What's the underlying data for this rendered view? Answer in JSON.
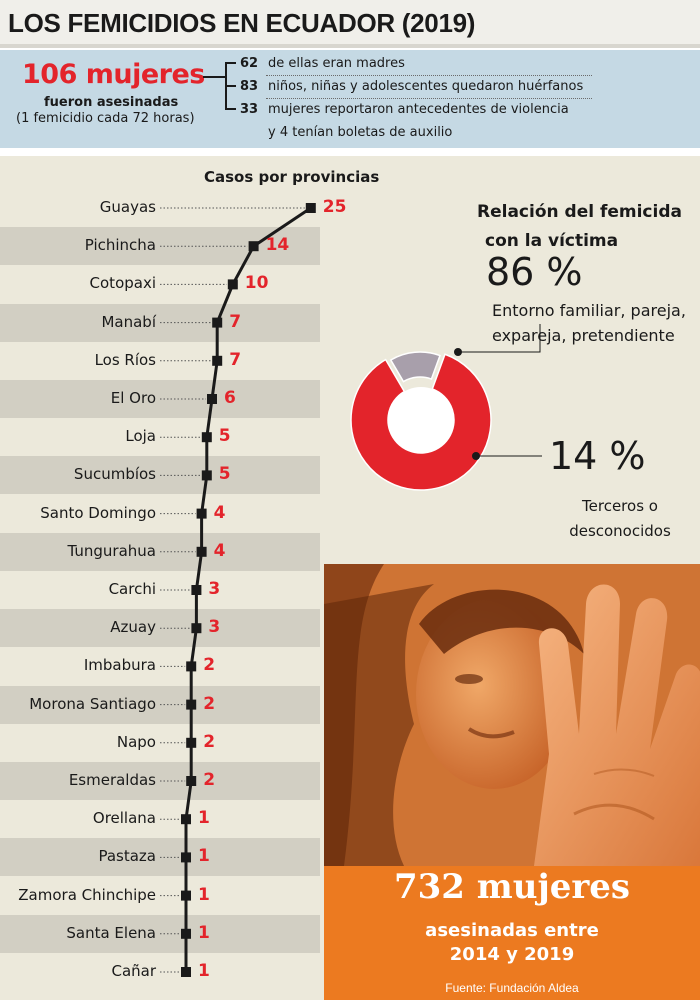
{
  "title": "LOS FEMICIDIOS EN ECUADOR (2019)",
  "summary": {
    "headline": "106 mujeres",
    "line1": "fueron asesinadas",
    "line2": "(1 femicidio cada 72 horas)",
    "items": [
      {
        "num": "62",
        "text": "de ellas eran madres"
      },
      {
        "num": "83",
        "text": "niños, niñas y adolescentes quedaron huérfanos"
      },
      {
        "num": "33",
        "text": "mujeres reportaron antecedentes de violencia",
        "text2": "y 4 tenían boletas de auxilio"
      }
    ]
  },
  "chart_data": [
    {
      "type": "line",
      "title": "Casos por provincias",
      "categories": [
        "Guayas",
        "Pichincha",
        "Cotopaxi",
        "Manabí",
        "Los Ríos",
        "El Oro",
        "Loja",
        "Sucumbíos",
        "Santo Domingo",
        "Tungurahua",
        "Carchi",
        "Azuay",
        "Imbabura",
        "Morona Santiago",
        "Napo",
        "Esmeraldas",
        "Orellana",
        "Pastaza",
        "Zamora Chinchipe",
        "Santa Elena",
        "Cañar"
      ],
      "values": [
        25,
        14,
        10,
        7,
        7,
        6,
        5,
        5,
        4,
        4,
        3,
        3,
        2,
        2,
        2,
        2,
        1,
        1,
        1,
        1,
        1
      ],
      "orientation": "vertical-categories",
      "colors": {
        "line": "#1a1a1a",
        "value_labels": "#e3242b"
      }
    },
    {
      "type": "pie",
      "title": "Relación del femicida con la víctima",
      "slices": [
        {
          "label": "Entorno familiar, pareja, expareja, pretendiente",
          "value": 86,
          "color": "#e3242b"
        },
        {
          "label": "Terceros o desconocidos",
          "value": 14,
          "color": "#a89fab"
        }
      ]
    }
  ],
  "relation": {
    "title1": "Relación del femicida",
    "title2": "con la víctima",
    "pct_main": "86 %",
    "desc_main1": "Entorno familiar, pareja,",
    "desc_main2": "expareja, pretendiente",
    "pct_minor": "14 %",
    "desc_minor1": "Terceros o",
    "desc_minor2": "desconocidos"
  },
  "footer": {
    "headline": "732 mujeres",
    "line1": "asesinadas entre",
    "line2": "2014 y 2019",
    "source": "Fuente: Fundación Aldea"
  },
  "colors": {
    "accent": "#e3242b",
    "panel_blue": "#c5d9e4",
    "beige": "#ece9db",
    "orange": "#ec7a20"
  }
}
